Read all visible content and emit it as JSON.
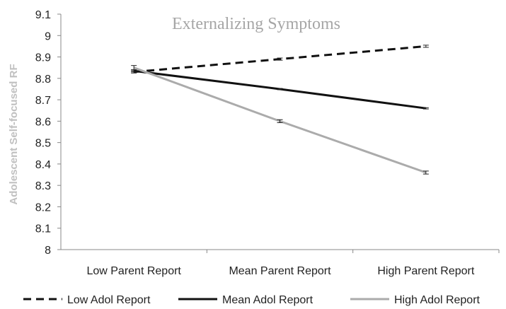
{
  "chart_data": {
    "type": "line",
    "title": "Externalizing Symptoms",
    "ylabel": "Adolescent Self-focused RF",
    "xlabel": "",
    "categories": [
      "Low Parent Report",
      "Mean Parent Report",
      "High Parent Report"
    ],
    "ylim": [
      8,
      9.1
    ],
    "yticks": [
      "8",
      "8.1",
      "8.2",
      "8.3",
      "8.4",
      "8.5",
      "8.6",
      "8.7",
      "8.8",
      "8.9",
      "9",
      "9.1"
    ],
    "grid": false,
    "legend_position": "bottom",
    "error_bars": true,
    "series": [
      {
        "name": "Low Adol Report",
        "values": [
          8.83,
          8.89,
          8.95
        ],
        "errors": [
          0.005,
          0.005,
          0.005
        ],
        "color": "#111111",
        "style": "dashed"
      },
      {
        "name": "Mean Adol Report",
        "values": [
          8.835,
          8.75,
          8.66
        ],
        "errors": [
          0.005,
          0.003,
          0.003
        ],
        "color": "#111111",
        "style": "solid"
      },
      {
        "name": "High Adol Report",
        "values": [
          8.85,
          8.6,
          8.36
        ],
        "errors": [
          0.01,
          0.007,
          0.007
        ],
        "color": "#ababab",
        "style": "solid"
      }
    ]
  }
}
